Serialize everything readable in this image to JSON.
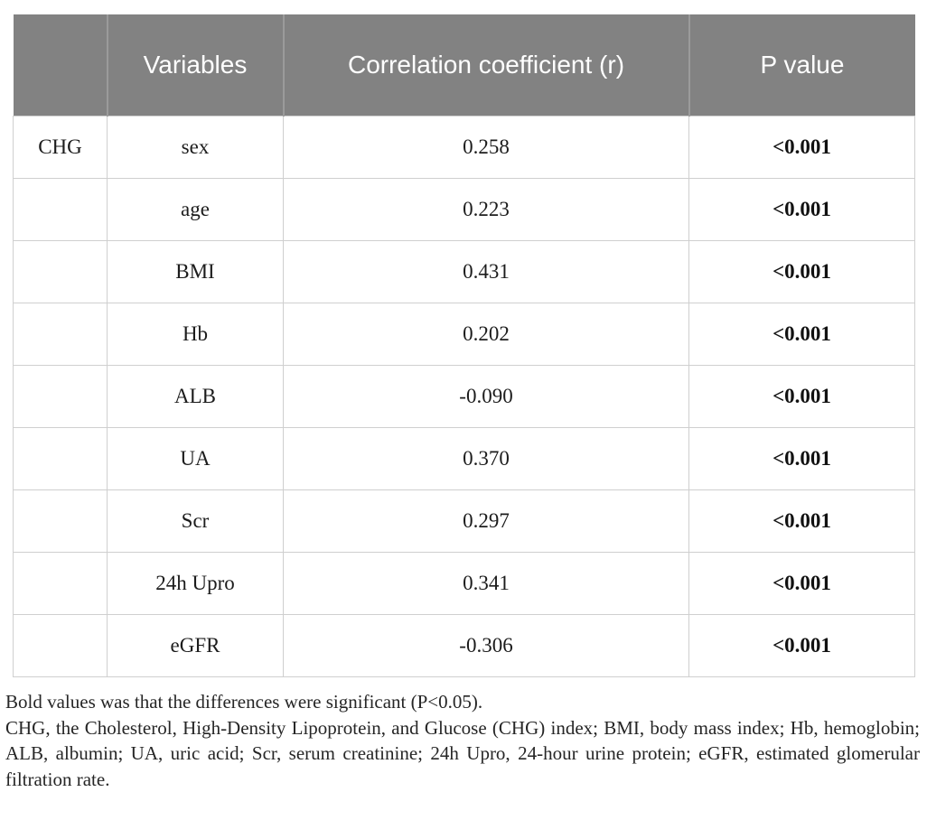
{
  "colors": {
    "header_bg": "#828282",
    "header_divider": "#9b9b9b",
    "header_text": "#ffffff",
    "cell_border": "#cfcfcf",
    "body_text": "#1c1c1c"
  },
  "table": {
    "columns": [
      "",
      "Variables",
      "Correlation coefficient (r)",
      "P value"
    ],
    "rows": [
      {
        "group": "CHG",
        "variable": "sex",
        "r": "0.258",
        "p": "<0.001"
      },
      {
        "group": "",
        "variable": "age",
        "r": "0.223",
        "p": "<0.001"
      },
      {
        "group": "",
        "variable": "BMI",
        "r": "0.431",
        "p": "<0.001"
      },
      {
        "group": "",
        "variable": "Hb",
        "r": "0.202",
        "p": "<0.001"
      },
      {
        "group": "",
        "variable": "ALB",
        "r": "-0.090",
        "p": "<0.001"
      },
      {
        "group": "",
        "variable": "UA",
        "r": "0.370",
        "p": "<0.001"
      },
      {
        "group": "",
        "variable": "Scr",
        "r": "0.297",
        "p": "<0.001"
      },
      {
        "group": "",
        "variable": "24h Upro",
        "r": "0.341",
        "p": "<0.001"
      },
      {
        "group": "",
        "variable": "eGFR",
        "r": "-0.306",
        "p": "<0.001"
      }
    ]
  },
  "footnotes": {
    "significance": "Bold values was that the differences were significant (P<0.05).",
    "abbreviations": "CHG, the Cholesterol, High-Density Lipoprotein, and Glucose (CHG) index; BMI, body mass index; Hb, hemoglobin; ALB, albumin; UA, uric acid; Scr, serum creatinine; 24h Upro, 24-hour urine protein; eGFR, estimated glomerular filtration rate."
  }
}
